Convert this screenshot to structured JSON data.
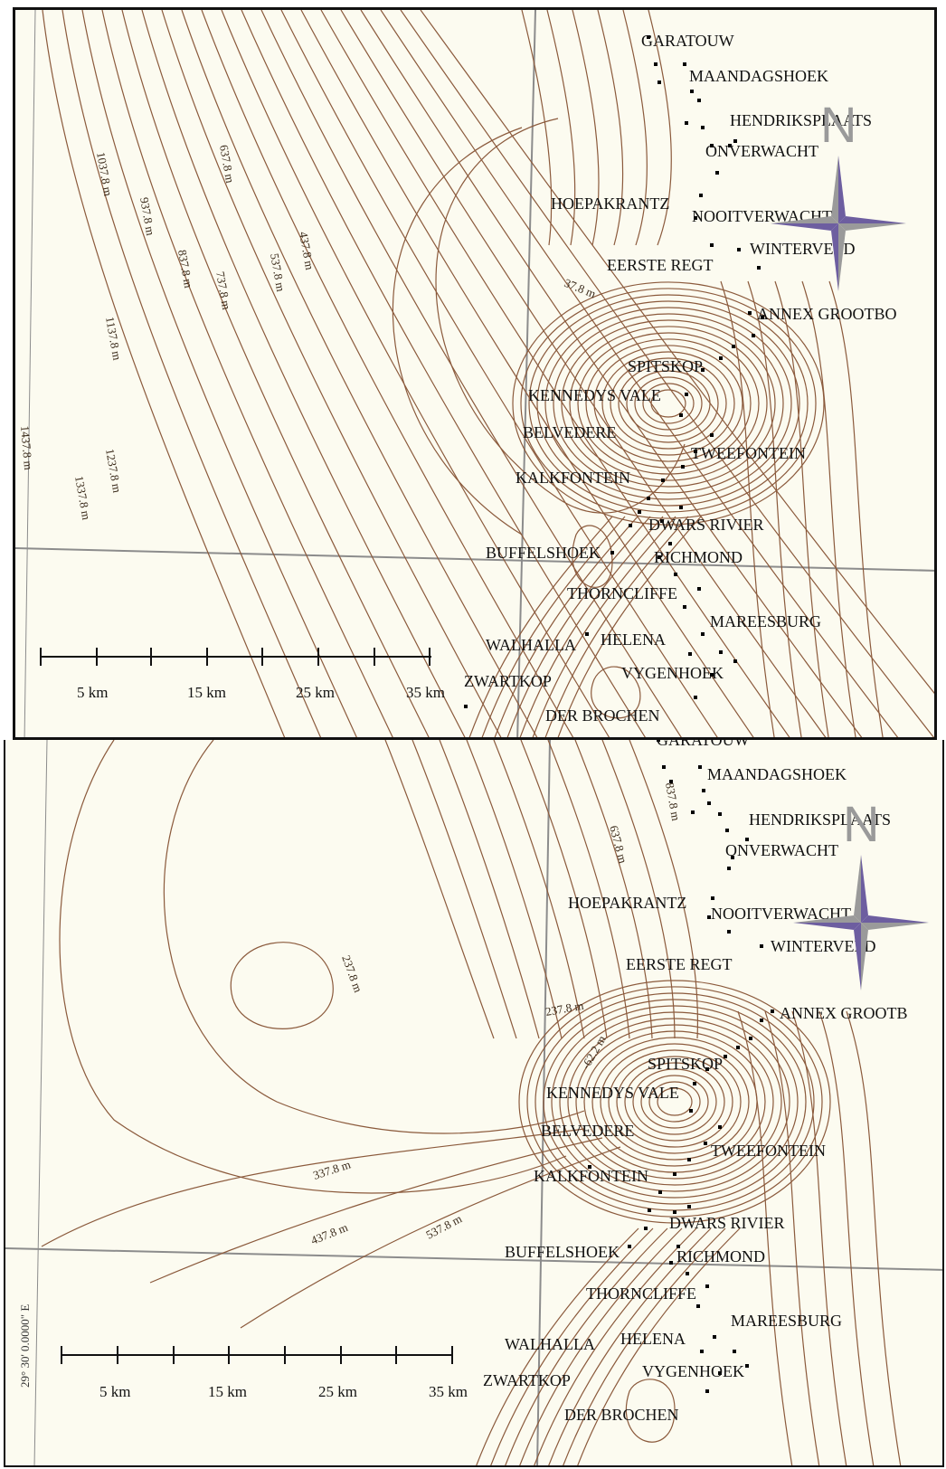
{
  "colors": {
    "background": "#fcfbf0",
    "contour": "#8b5a3c",
    "grid": "#8c8c8c",
    "points": "#000000",
    "compass_purple": "#6d5ea0",
    "compass_gray": "#9a9a9a"
  },
  "icons": {
    "north_arrow": "compass-rose-icon",
    "settlement": "point-marker-icon"
  },
  "compass": {
    "north_letter": "N"
  },
  "panels": [
    {
      "id": "top",
      "places": [
        "GARATOUW",
        "MAANDAGSHOEK",
        "HENDRIKSPLAATS",
        "ONVERWACHT",
        "HOEPAKRANTZ",
        "NOOITVERWACHT",
        "WINTERVELD",
        "EERSTE REGT",
        "ANNEX GROOTBO",
        "SPITSKOP",
        "KENNEDYS VALE",
        "BELVEDERE",
        "TWEEFONTEIN",
        "KALKFONTEIN",
        "DWARS RIVIER",
        "BUFFELSHOEK",
        "RICHMOND",
        "THORNCLIFFE",
        "MAREESBURG",
        "WALHALLA",
        "HELENA",
        "VYGENHOEK",
        "ZWARTKOP",
        "DER BROCHEN"
      ],
      "contour_labels": [
        "1037.8 m",
        "937.8 m",
        "837.8 m",
        "737.8 m",
        "637.8 m",
        "537.8 m",
        "437.8 m",
        "1137.8 m",
        "1237.8 m",
        "1337.8 m",
        "1437.8 m",
        "37.8 m"
      ],
      "scale_labels": [
        "5 km",
        "15 km",
        "25 km",
        "35 km"
      ]
    },
    {
      "id": "bottom",
      "places": [
        "GARATOUW",
        "MAANDAGSHOEK",
        "HENDRIKSPLAATS",
        "ONVERWACHT",
        "HOEPAKRANTZ",
        "NOOITVERWACHT",
        "WINTERVELD",
        "EERSTE REGT",
        "ANNEX GROOTB",
        "SPITSKOP",
        "KENNEDYS VALE",
        "BELVEDERE",
        "TWEEFONTEIN",
        "KALKFONTEIN",
        "DWARS RIVIER",
        "BUFFELSHOEK",
        "RICHMOND",
        "THORNCLIFFE",
        "MAREESBURG",
        "WALHALLA",
        "HELENA",
        "VYGENHOEK",
        "ZWARTKOP",
        "DER BROCHEN"
      ],
      "contour_labels": [
        "837.8 m",
        "637.8 m",
        "237.8 m",
        "237.8 m",
        "-62.2 m",
        "337.8 m",
        "437.8 m",
        "537.8 m"
      ],
      "scale_labels": [
        "5 km",
        "15 km",
        "25 km",
        "35 km"
      ],
      "coordinate_label": "29° 30' 0.0000\" E"
    }
  ]
}
